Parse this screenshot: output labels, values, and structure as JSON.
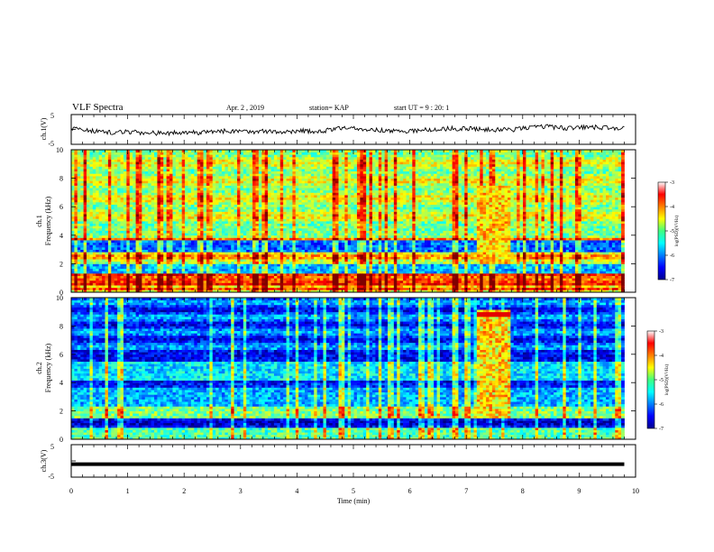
{
  "header": {
    "title": "VLF Spectra",
    "date": "Apr. 2 , 2019",
    "station": "station= KAP",
    "start": "start UT = 9 : 20: 1"
  },
  "chart_data": [
    {
      "type": "line",
      "panel": "ch1-waveform",
      "ylabel": "ch.1(V)",
      "ylim": [
        -5,
        5
      ],
      "yticks": [
        "5",
        "-5"
      ],
      "xlim": [
        0,
        10
      ],
      "x_extent": [
        0,
        9.8
      ],
      "series": [
        {
          "values": [
            0.5,
            -0.5,
            -1.0,
            -0.8,
            -1.2,
            -1.3,
            -0.9,
            -1.1,
            -0.6,
            -0.8,
            -0.7,
            -0.9,
            -0.5,
            -0.7,
            0.2,
            0.4,
            -0.3,
            -0.6,
            -0.4,
            0.0,
            0.3,
            0.2,
            0.0,
            -0.2,
            0.6,
            1.0,
            0.4,
            0.8,
            0.6,
            0.5
          ]
        }
      ],
      "color": "#000000"
    },
    {
      "type": "heatmap",
      "panel": "ch1-spectrogram",
      "ylabel": "ch.1\nFrequency (kHz)",
      "ylim": [
        0,
        10
      ],
      "yticks": [
        "0",
        "2",
        "4",
        "6",
        "8",
        "10"
      ],
      "xlim": [
        0,
        10
      ],
      "x_extent": [
        0,
        9.8
      ],
      "colorbar": {
        "label": "log(PSD)(V²/Hz)",
        "range": [
          -7,
          -3
        ],
        "ticks": [
          "-3",
          "-4",
          "-5",
          "-6",
          "-7"
        ]
      },
      "event": {
        "x_start": 7.2,
        "x_end": 7.8
      }
    },
    {
      "type": "heatmap",
      "panel": "ch2-spectrogram",
      "ylabel": "ch.2\nFrequency (kHz)",
      "ylim": [
        0,
        10
      ],
      "yticks": [
        "0",
        "2",
        "4",
        "6",
        "8",
        "10"
      ],
      "xlim": [
        0,
        10
      ],
      "x_extent": [
        0,
        9.8
      ],
      "colorbar": {
        "label": "log(PSD)(V²/Hz)",
        "range": [
          -7,
          -3
        ],
        "ticks": [
          "-3",
          "-4",
          "-5",
          "-6",
          "-7"
        ]
      },
      "event": {
        "x_start": 7.2,
        "x_end": 7.8
      }
    },
    {
      "type": "line",
      "panel": "ch3-waveform",
      "ylabel": "ch.3(V)",
      "ylim": [
        -5,
        5
      ],
      "yticks": [
        "5",
        "-5"
      ],
      "xlim": [
        0,
        10
      ],
      "x_extent": [
        0,
        9.8
      ],
      "series": [
        {
          "values": [
            -1,
            -1
          ]
        }
      ],
      "color": "#000000"
    }
  ],
  "xaxis": {
    "label": "Time (min)",
    "ticks": [
      "0",
      "1",
      "2",
      "3",
      "4",
      "5",
      "6",
      "7",
      "8",
      "9",
      "10"
    ]
  }
}
